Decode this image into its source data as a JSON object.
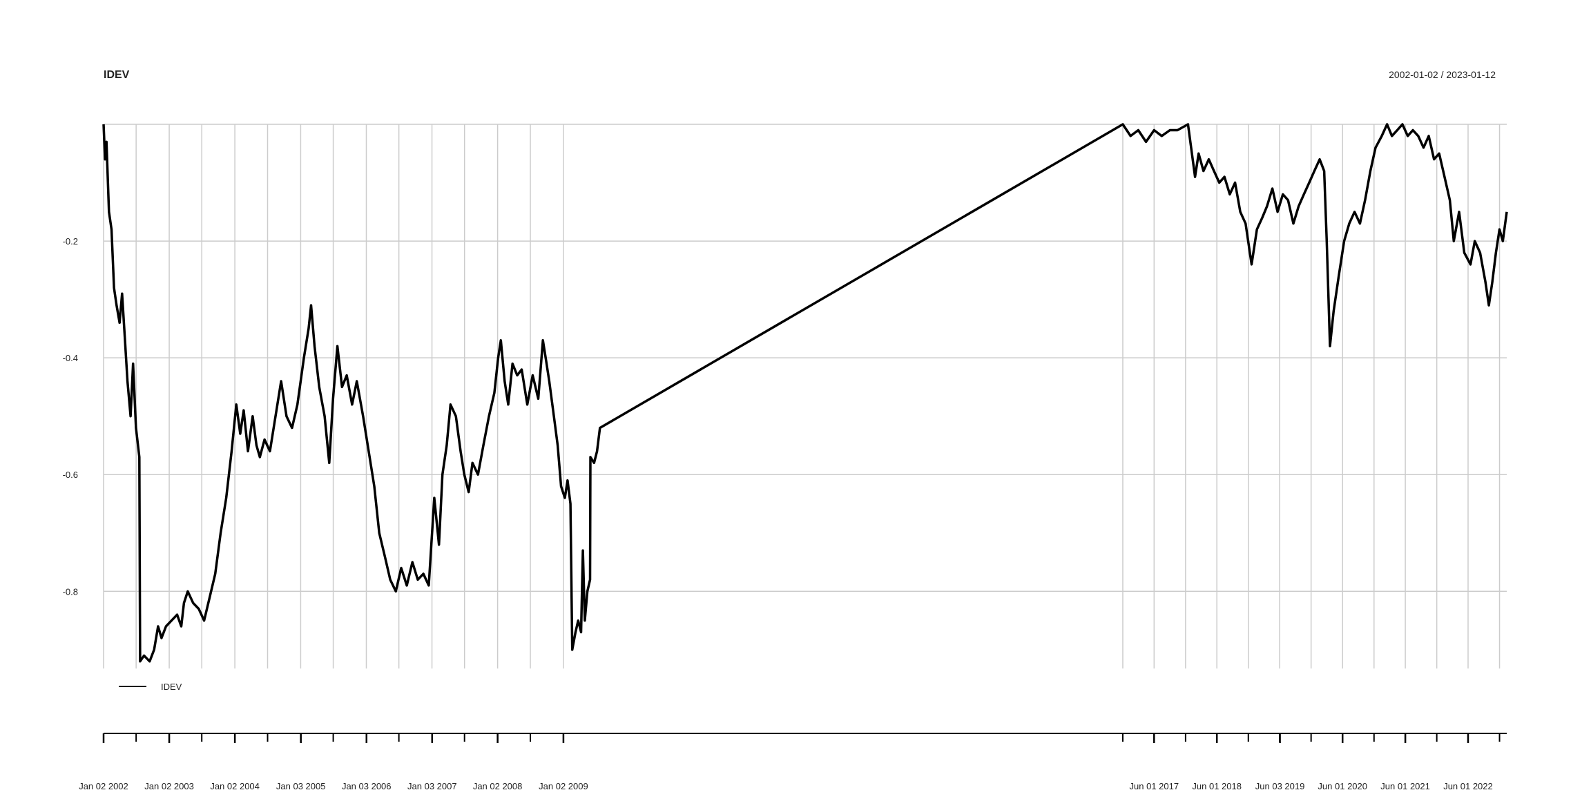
{
  "chart_data": {
    "type": "line",
    "title": "IDEV",
    "date_range_label": "2002-01-02 / 2023-01-12",
    "legend": {
      "label": "IDEV",
      "placement": "bottom-left"
    },
    "grid": true,
    "ylim": [
      -0.97,
      0.0
    ],
    "y_ticks": [
      {
        "value": -0.2,
        "label": "-0.2"
      },
      {
        "value": -0.4,
        "label": "-0.4"
      },
      {
        "value": -0.6,
        "label": "-0.6"
      },
      {
        "value": -0.8,
        "label": "-0.8"
      }
    ],
    "x_ticks": [
      {
        "date": "2002-01-02",
        "label": "Jan 02 2002"
      },
      {
        "date": "2003-01-02",
        "label": "Jan 02 2003"
      },
      {
        "date": "2004-01-02",
        "label": "Jan 02 2004"
      },
      {
        "date": "2005-01-03",
        "label": "Jan 03 2005"
      },
      {
        "date": "2006-01-03",
        "label": "Jan 03 2006"
      },
      {
        "date": "2007-01-03",
        "label": "Jan 03 2007"
      },
      {
        "date": "2008-01-02",
        "label": "Jan 02 2008"
      },
      {
        "date": "2009-01-02",
        "label": "Jan 02 2009"
      },
      {
        "date": "2017-06-01",
        "label": "Jun 01 2017"
      },
      {
        "date": "2018-06-01",
        "label": "Jun 01 2018"
      },
      {
        "date": "2019-06-03",
        "label": "Jun 03 2019"
      },
      {
        "date": "2020-06-01",
        "label": "Jun 01 2020"
      },
      {
        "date": "2021-06-01",
        "label": "Jun 01 2021"
      },
      {
        "date": "2022-06-01",
        "label": "Jun 01 2022"
      }
    ],
    "segments": [
      {
        "start": "2002-01-02",
        "end": "2009-06-01",
        "gridlines_every_months": 6
      },
      {
        "start": "2016-12-01",
        "end": "2023-01-12",
        "gridlines_every_months": 6
      }
    ],
    "series": [
      {
        "name": "IDEV",
        "color": "#000000",
        "points": [
          [
            "2002-01-02",
            0.0
          ],
          [
            "2002-01-10",
            -0.06
          ],
          [
            "2002-01-18",
            -0.03
          ],
          [
            "2002-02-01",
            -0.15
          ],
          [
            "2002-02-15",
            -0.18
          ],
          [
            "2002-03-01",
            -0.28
          ],
          [
            "2002-03-15",
            -0.31
          ],
          [
            "2002-04-01",
            -0.34
          ],
          [
            "2002-04-15",
            -0.29
          ],
          [
            "2002-05-01",
            -0.37
          ],
          [
            "2002-05-15",
            -0.44
          ],
          [
            "2002-06-01",
            -0.5
          ],
          [
            "2002-06-15",
            -0.41
          ],
          [
            "2002-07-01",
            -0.52
          ],
          [
            "2002-07-20",
            -0.57
          ],
          [
            "2002-07-24",
            -0.92
          ],
          [
            "2002-08-15",
            -0.91
          ],
          [
            "2002-09-15",
            -0.92
          ],
          [
            "2002-10-10",
            -0.9
          ],
          [
            "2002-11-01",
            -0.86
          ],
          [
            "2002-11-20",
            -0.88
          ],
          [
            "2002-12-15",
            -0.86
          ],
          [
            "2003-01-15",
            -0.85
          ],
          [
            "2003-02-15",
            -0.84
          ],
          [
            "2003-03-10",
            -0.86
          ],
          [
            "2003-03-25",
            -0.82
          ],
          [
            "2003-04-15",
            -0.8
          ],
          [
            "2003-05-15",
            -0.82
          ],
          [
            "2003-06-15",
            -0.83
          ],
          [
            "2003-07-15",
            -0.85
          ],
          [
            "2003-08-15",
            -0.81
          ],
          [
            "2003-09-15",
            -0.77
          ],
          [
            "2003-10-15",
            -0.7
          ],
          [
            "2003-11-15",
            -0.64
          ],
          [
            "2003-12-15",
            -0.56
          ],
          [
            "2004-01-10",
            -0.48
          ],
          [
            "2004-02-01",
            -0.53
          ],
          [
            "2004-02-20",
            -0.49
          ],
          [
            "2004-03-15",
            -0.56
          ],
          [
            "2004-04-10",
            -0.5
          ],
          [
            "2004-05-01",
            -0.55
          ],
          [
            "2004-05-20",
            -0.57
          ],
          [
            "2004-06-15",
            -0.54
          ],
          [
            "2004-07-15",
            -0.56
          ],
          [
            "2004-08-15",
            -0.5
          ],
          [
            "2004-09-15",
            -0.44
          ],
          [
            "2004-10-15",
            -0.5
          ],
          [
            "2004-11-15",
            -0.52
          ],
          [
            "2004-12-15",
            -0.48
          ],
          [
            "2005-01-20",
            -0.4
          ],
          [
            "2005-02-15",
            -0.35
          ],
          [
            "2005-03-01",
            -0.31
          ],
          [
            "2005-03-20",
            -0.38
          ],
          [
            "2005-04-15",
            -0.45
          ],
          [
            "2005-05-15",
            -0.5
          ],
          [
            "2005-06-10",
            -0.58
          ],
          [
            "2005-07-01",
            -0.47
          ],
          [
            "2005-07-25",
            -0.38
          ],
          [
            "2005-08-20",
            -0.45
          ],
          [
            "2005-09-15",
            -0.43
          ],
          [
            "2005-10-15",
            -0.48
          ],
          [
            "2005-11-10",
            -0.44
          ],
          [
            "2005-12-15",
            -0.5
          ],
          [
            "2006-01-15",
            -0.56
          ],
          [
            "2006-02-15",
            -0.62
          ],
          [
            "2006-03-15",
            -0.7
          ],
          [
            "2006-04-15",
            -0.74
          ],
          [
            "2006-05-15",
            -0.78
          ],
          [
            "2006-06-15",
            -0.8
          ],
          [
            "2006-07-15",
            -0.76
          ],
          [
            "2006-08-15",
            -0.79
          ],
          [
            "2006-09-15",
            -0.75
          ],
          [
            "2006-10-15",
            -0.78
          ],
          [
            "2006-11-15",
            -0.77
          ],
          [
            "2006-12-15",
            -0.79
          ],
          [
            "2007-01-15",
            -0.64
          ],
          [
            "2007-02-10",
            -0.72
          ],
          [
            "2007-03-01",
            -0.6
          ],
          [
            "2007-03-25",
            -0.55
          ],
          [
            "2007-04-15",
            -0.48
          ],
          [
            "2007-05-15",
            -0.5
          ],
          [
            "2007-06-10",
            -0.56
          ],
          [
            "2007-07-01",
            -0.6
          ],
          [
            "2007-07-25",
            -0.63
          ],
          [
            "2007-08-15",
            -0.58
          ],
          [
            "2007-09-15",
            -0.6
          ],
          [
            "2007-10-15",
            -0.55
          ],
          [
            "2007-11-15",
            -0.5
          ],
          [
            "2007-12-15",
            -0.46
          ],
          [
            "2008-01-05",
            -0.4
          ],
          [
            "2008-01-20",
            -0.37
          ],
          [
            "2008-02-10",
            -0.44
          ],
          [
            "2008-03-01",
            -0.48
          ],
          [
            "2008-03-25",
            -0.41
          ],
          [
            "2008-04-20",
            -0.43
          ],
          [
            "2008-05-15",
            -0.42
          ],
          [
            "2008-06-15",
            -0.48
          ],
          [
            "2008-07-15",
            -0.43
          ],
          [
            "2008-08-15",
            -0.47
          ],
          [
            "2008-09-10",
            -0.37
          ],
          [
            "2008-09-25",
            -0.4
          ],
          [
            "2008-10-15",
            -0.44
          ],
          [
            "2008-11-10",
            -0.5
          ],
          [
            "2008-12-01",
            -0.55
          ],
          [
            "2008-12-20",
            -0.62
          ],
          [
            "2009-01-10",
            -0.64
          ],
          [
            "2009-01-25",
            -0.61
          ],
          [
            "2009-02-10",
            -0.65
          ],
          [
            "2009-02-20",
            -0.9
          ],
          [
            "2009-03-10",
            -0.87
          ],
          [
            "2009-03-25",
            -0.85
          ],
          [
            "2009-04-10",
            -0.87
          ],
          [
            "2009-04-20",
            -0.73
          ],
          [
            "2009-05-01",
            -0.85
          ],
          [
            "2009-05-15",
            -0.8
          ],
          [
            "2009-05-30",
            -0.78
          ],
          [
            "2009-06-01",
            -0.57
          ],
          [
            "2009-06-20",
            -0.58
          ],
          [
            "2009-07-05",
            -0.56
          ],
          [
            "2009-07-20",
            -0.52
          ],
          [
            "2016-12-01",
            0.0
          ],
          [
            "2017-01-15",
            -0.02
          ],
          [
            "2017-03-01",
            -0.01
          ],
          [
            "2017-04-15",
            -0.03
          ],
          [
            "2017-06-01",
            -0.01
          ],
          [
            "2017-07-15",
            -0.02
          ],
          [
            "2017-09-01",
            -0.01
          ],
          [
            "2017-10-15",
            -0.01
          ],
          [
            "2017-12-15",
            0.0
          ],
          [
            "2018-01-25",
            -0.09
          ],
          [
            "2018-02-15",
            -0.05
          ],
          [
            "2018-03-15",
            -0.08
          ],
          [
            "2018-04-15",
            -0.06
          ],
          [
            "2018-05-15",
            -0.08
          ],
          [
            "2018-06-15",
            -0.1
          ],
          [
            "2018-07-15",
            -0.09
          ],
          [
            "2018-08-15",
            -0.12
          ],
          [
            "2018-09-15",
            -0.1
          ],
          [
            "2018-10-15",
            -0.15
          ],
          [
            "2018-11-15",
            -0.17
          ],
          [
            "2018-12-20",
            -0.24
          ],
          [
            "2019-01-20",
            -0.18
          ],
          [
            "2019-02-20",
            -0.16
          ],
          [
            "2019-03-20",
            -0.14
          ],
          [
            "2019-04-20",
            -0.11
          ],
          [
            "2019-05-20",
            -0.15
          ],
          [
            "2019-06-20",
            -0.12
          ],
          [
            "2019-07-20",
            -0.13
          ],
          [
            "2019-08-20",
            -0.17
          ],
          [
            "2019-09-20",
            -0.14
          ],
          [
            "2019-10-20",
            -0.12
          ],
          [
            "2019-11-20",
            -0.1
          ],
          [
            "2019-12-20",
            -0.08
          ],
          [
            "2020-01-20",
            -0.06
          ],
          [
            "2020-02-15",
            -0.08
          ],
          [
            "2020-03-01",
            -0.2
          ],
          [
            "2020-03-20",
            -0.38
          ],
          [
            "2020-04-10",
            -0.32
          ],
          [
            "2020-05-10",
            -0.26
          ],
          [
            "2020-06-10",
            -0.2
          ],
          [
            "2020-07-10",
            -0.17
          ],
          [
            "2020-08-10",
            -0.15
          ],
          [
            "2020-09-10",
            -0.17
          ],
          [
            "2020-10-10",
            -0.13
          ],
          [
            "2020-11-10",
            -0.08
          ],
          [
            "2020-12-10",
            -0.04
          ],
          [
            "2021-01-15",
            -0.02
          ],
          [
            "2021-02-15",
            0.0
          ],
          [
            "2021-03-15",
            -0.02
          ],
          [
            "2021-04-15",
            -0.01
          ],
          [
            "2021-05-15",
            0.0
          ],
          [
            "2021-06-15",
            -0.02
          ],
          [
            "2021-07-15",
            -0.01
          ],
          [
            "2021-08-15",
            -0.02
          ],
          [
            "2021-09-15",
            -0.04
          ],
          [
            "2021-10-15",
            -0.02
          ],
          [
            "2021-11-15",
            -0.06
          ],
          [
            "2021-12-15",
            -0.05
          ],
          [
            "2022-01-15",
            -0.09
          ],
          [
            "2022-02-15",
            -0.13
          ],
          [
            "2022-03-10",
            -0.2
          ],
          [
            "2022-04-10",
            -0.15
          ],
          [
            "2022-05-10",
            -0.22
          ],
          [
            "2022-06-15",
            -0.24
          ],
          [
            "2022-07-10",
            -0.2
          ],
          [
            "2022-08-10",
            -0.22
          ],
          [
            "2022-09-10",
            -0.27
          ],
          [
            "2022-09-30",
            -0.31
          ],
          [
            "2022-10-20",
            -0.27
          ],
          [
            "2022-11-10",
            -0.22
          ],
          [
            "2022-12-01",
            -0.18
          ],
          [
            "2022-12-20",
            -0.2
          ],
          [
            "2023-01-12",
            -0.15
          ]
        ]
      }
    ]
  }
}
